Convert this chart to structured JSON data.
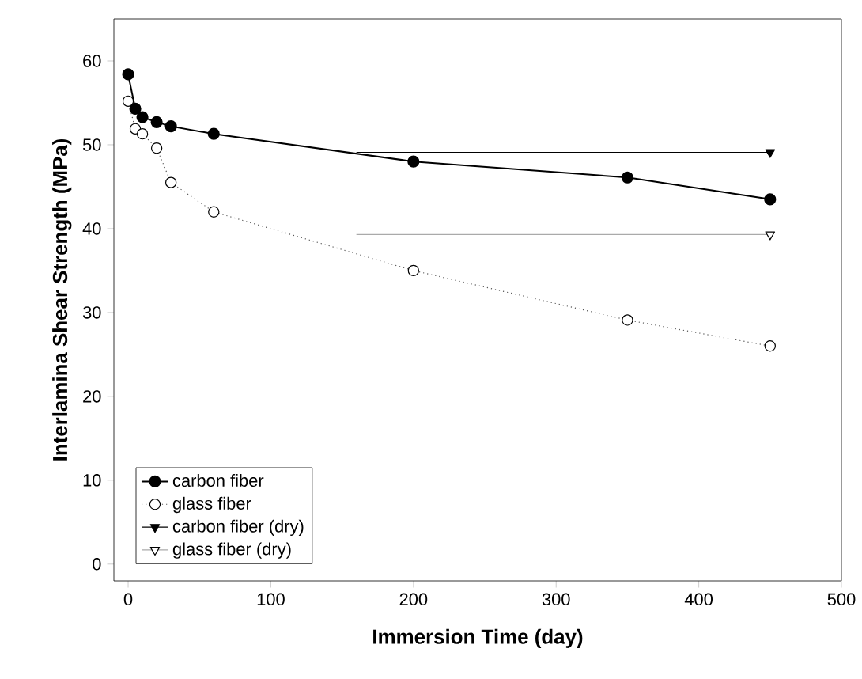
{
  "chart_data": {
    "type": "line",
    "xlabel": "Immersion Time (day)",
    "ylabel": "Interlamina Shear Strength (MPa)",
    "xlim": [
      -10,
      500
    ],
    "ylim": [
      -2,
      65
    ],
    "xticks": [
      0,
      100,
      200,
      300,
      400,
      500
    ],
    "yticks": [
      0,
      10,
      20,
      30,
      40,
      50,
      60
    ],
    "grid": false,
    "legend": "bottom left",
    "series": [
      {
        "name": "carbon fiber",
        "color": "#000000",
        "x": [
          0,
          5,
          10,
          20,
          30,
          60,
          200,
          350,
          450
        ],
        "values": [
          58.4,
          54.3,
          53.3,
          52.7,
          52.2,
          51.3,
          48.0,
          46.1,
          43.5
        ],
        "marker": "circle",
        "line_style": "solid"
      },
      {
        "name": "glass fiber",
        "color": "#555555",
        "x": [
          0,
          5,
          10,
          20,
          30,
          60,
          200,
          350,
          450
        ],
        "values": [
          55.2,
          51.9,
          51.3,
          49.6,
          45.5,
          42.0,
          35.0,
          29.1,
          26.0
        ],
        "marker": "circle",
        "line_style": "dotted"
      },
      {
        "name": "carbon fiber (dry)",
        "color": "#000000",
        "x": [
          160,
          450
        ],
        "values": [
          49.1,
          49.1
        ],
        "marker": "triangle",
        "line_style": "solid"
      },
      {
        "name": "glass fiber (dry)",
        "color": "#aaaaaa",
        "x": [
          160,
          450
        ],
        "values": [
          39.3,
          39.3
        ],
        "marker": "triangle",
        "line_style": "solid"
      }
    ]
  }
}
